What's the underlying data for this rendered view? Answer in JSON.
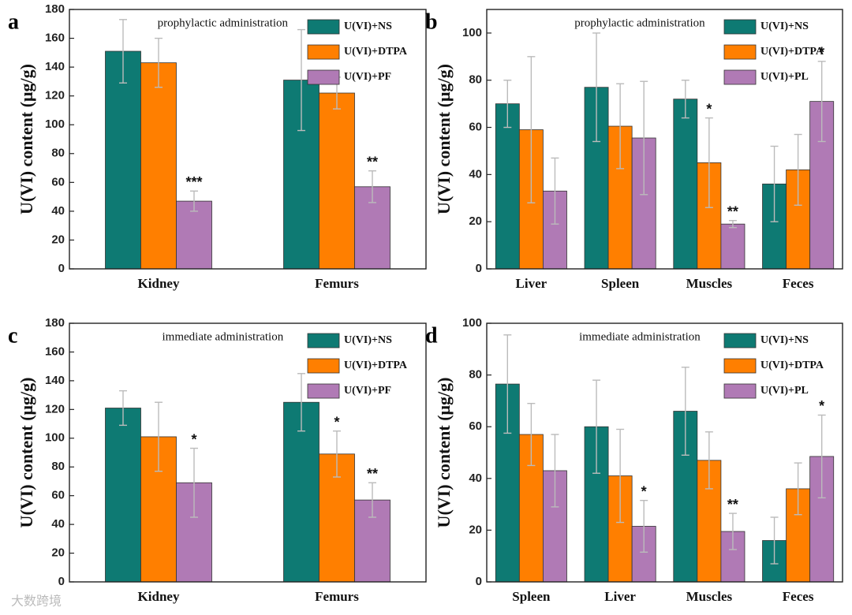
{
  "watermark": "大数跨境",
  "chart_data": [
    {
      "type": "bar",
      "panel_label": "a",
      "subtitle": "prophylactic administration",
      "ylabel": "U(VI) content (μg/g)",
      "categories": [
        "Kidney",
        "Femurs"
      ],
      "ylim": [
        0,
        180
      ],
      "yticks": [
        0,
        20,
        40,
        60,
        80,
        100,
        120,
        140,
        160,
        180
      ],
      "series": [
        {
          "name": "U(VI)+NS",
          "color": "#0e7a73",
          "values": [
            151,
            131
          ],
          "errors": [
            22,
            35
          ],
          "significance": [
            null,
            null
          ]
        },
        {
          "name": "U(VI)+DTPA",
          "color": "#ff7f00",
          "values": [
            143,
            122
          ],
          "errors": [
            17,
            11
          ],
          "significance": [
            null,
            null
          ]
        },
        {
          "name": "U(VI)+PF",
          "color": "#b07ab5",
          "values": [
            47,
            57
          ],
          "errors": [
            7,
            11
          ],
          "significance": [
            "***",
            "**"
          ]
        }
      ]
    },
    {
      "type": "bar",
      "panel_label": "b",
      "subtitle": "prophylactic administration",
      "ylabel": "U(VI) content (μg/g)",
      "categories": [
        "Liver",
        "Spleen",
        "Muscles",
        "Feces"
      ],
      "ylim": [
        0,
        110
      ],
      "yticks": [
        0,
        20,
        40,
        60,
        80,
        100
      ],
      "series": [
        {
          "name": "U(VI)+NS",
          "color": "#0e7a73",
          "values": [
            70,
            77,
            72,
            36
          ],
          "errors": [
            10,
            23,
            8,
            16
          ],
          "significance": [
            null,
            null,
            null,
            null
          ]
        },
        {
          "name": "U(VI)+DTPA",
          "color": "#ff7f00",
          "values": [
            59,
            60.5,
            45,
            42
          ],
          "errors": [
            31,
            18,
            19,
            15
          ],
          "significance": [
            null,
            null,
            "*",
            null
          ]
        },
        {
          "name": "U(VI)+PL",
          "color": "#b07ab5",
          "values": [
            33,
            55.5,
            19,
            71
          ],
          "errors": [
            14,
            24,
            1.5,
            17
          ],
          "significance": [
            null,
            null,
            "**",
            "*"
          ]
        }
      ]
    },
    {
      "type": "bar",
      "panel_label": "c",
      "subtitle": "immediate administration",
      "ylabel": "U(VI) content (μg/g)",
      "categories": [
        "Kidney",
        "Femurs"
      ],
      "ylim": [
        0,
        180
      ],
      "yticks": [
        0,
        20,
        40,
        60,
        80,
        100,
        120,
        140,
        160,
        180
      ],
      "series": [
        {
          "name": "U(VI)+NS",
          "color": "#0e7a73",
          "values": [
            121,
            125
          ],
          "errors": [
            12,
            20
          ],
          "significance": [
            null,
            null
          ]
        },
        {
          "name": "U(VI)+DTPA",
          "color": "#ff7f00",
          "values": [
            101,
            89
          ],
          "errors": [
            24,
            16
          ],
          "significance": [
            null,
            "*"
          ]
        },
        {
          "name": "U(VI)+PF",
          "color": "#b07ab5",
          "values": [
            69,
            57
          ],
          "errors": [
            24,
            12
          ],
          "significance": [
            "*",
            "**"
          ]
        }
      ]
    },
    {
      "type": "bar",
      "panel_label": "d",
      "subtitle": "immediate administration",
      "ylabel": "U(VI) content (μg/g)",
      "categories": [
        "Spleen",
        "Liver",
        "Muscles",
        "Feces"
      ],
      "ylim": [
        0,
        100
      ],
      "yticks": [
        0,
        20,
        40,
        60,
        80,
        100
      ],
      "series": [
        {
          "name": "U(VI)+NS",
          "color": "#0e7a73",
          "values": [
            76.5,
            60,
            66,
            16
          ],
          "errors": [
            19,
            18,
            17,
            9
          ],
          "significance": [
            null,
            null,
            null,
            null
          ]
        },
        {
          "name": "U(VI)+DTPA",
          "color": "#ff7f00",
          "values": [
            57,
            41,
            47,
            36
          ],
          "errors": [
            12,
            18,
            11,
            10
          ],
          "significance": [
            null,
            null,
            null,
            null
          ]
        },
        {
          "name": "U(VI)+PL",
          "color": "#b07ab5",
          "values": [
            43,
            21.5,
            19.5,
            48.5
          ],
          "errors": [
            14,
            10,
            7,
            16
          ],
          "significance": [
            null,
            "*",
            "**",
            "*"
          ]
        }
      ]
    }
  ]
}
